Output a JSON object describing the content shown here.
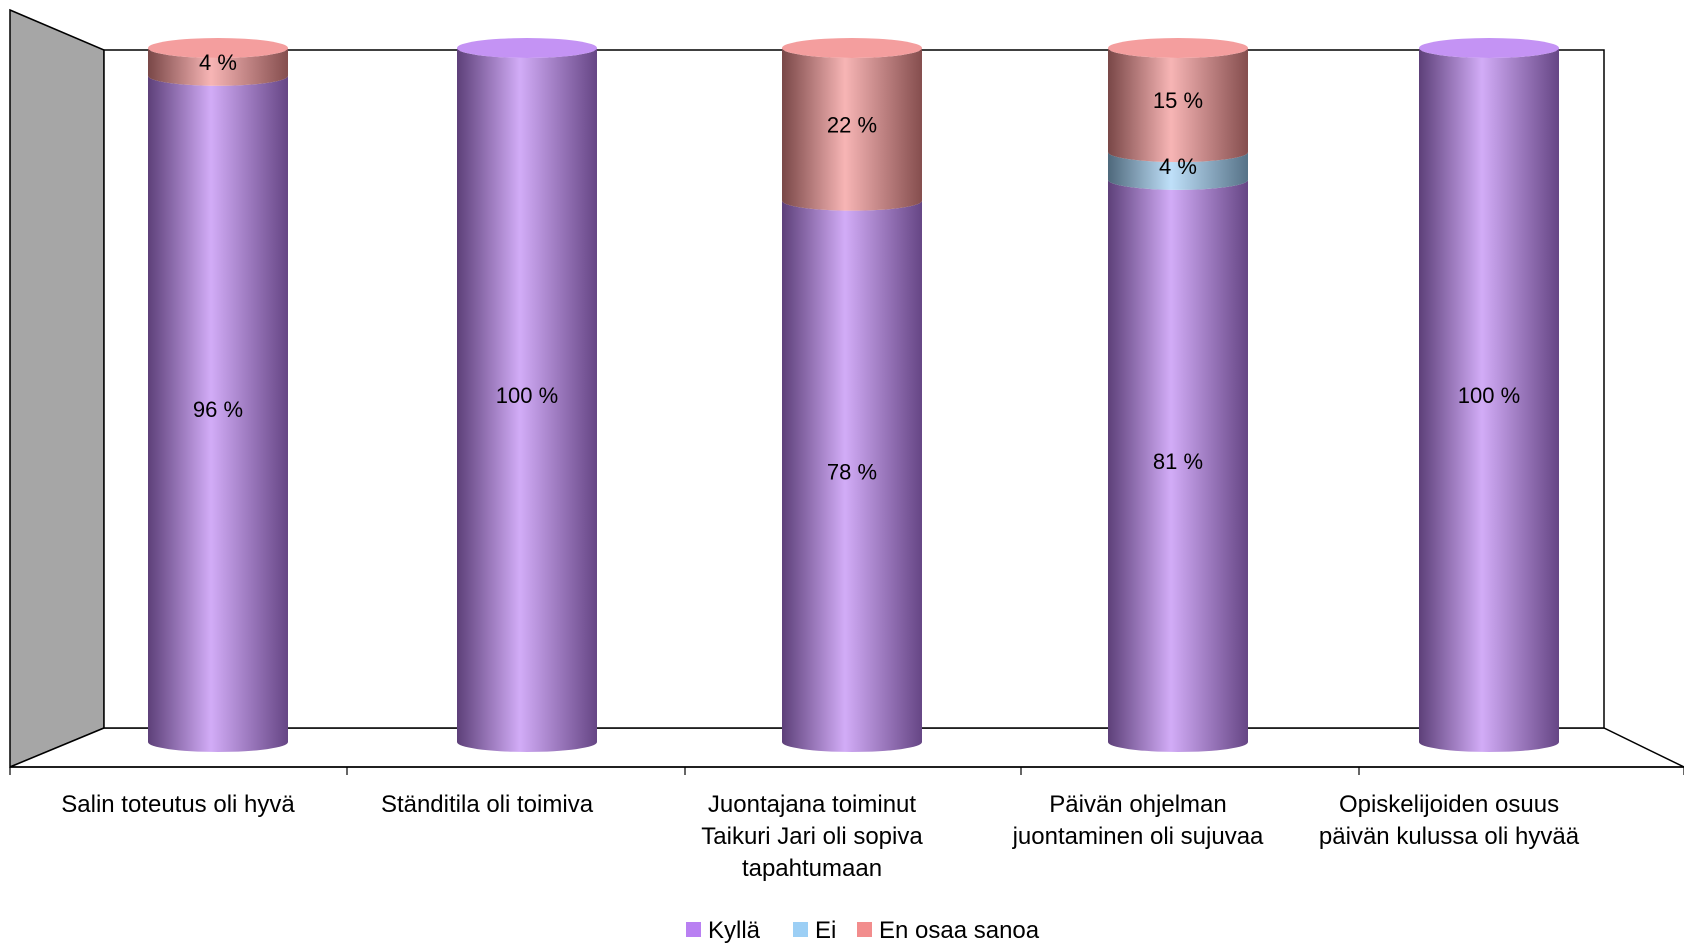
{
  "chart_data": {
    "type": "bar",
    "stacked": true,
    "percent": true,
    "categories": [
      [
        "Salin toteutus oli hyvä"
      ],
      [
        "Ständitila oli toimiva"
      ],
      [
        "Juontajana toiminut",
        "Taikuri Jari oli sopiva",
        "tapahtumaan"
      ],
      [
        "Päivän ohjelman",
        "juontaminen oli sujuvaa"
      ],
      [
        "Opiskelijoiden osuus",
        "päivän kulussa oli hyvää"
      ]
    ],
    "series": [
      {
        "name": "Kyllä",
        "color": "#b980f2",
        "values": [
          96,
          100,
          78,
          81,
          100
        ],
        "labels": [
          "96 %",
          "100 %",
          "78 %",
          "81 %",
          "100 %"
        ]
      },
      {
        "name": "Ei",
        "color": "#9ccff5",
        "values": [
          0,
          0,
          0,
          4,
          0
        ],
        "labels": [
          "",
          "",
          "",
          "4 %",
          ""
        ]
      },
      {
        "name": "En osaa sanoa",
        "color": "#f28d8d",
        "values": [
          4,
          0,
          22,
          15,
          0
        ],
        "labels": [
          "4 %",
          "",
          "22 %",
          "15 %",
          ""
        ]
      }
    ],
    "ylim": [
      0,
      100
    ],
    "legend_position": "bottom",
    "grid": false
  }
}
